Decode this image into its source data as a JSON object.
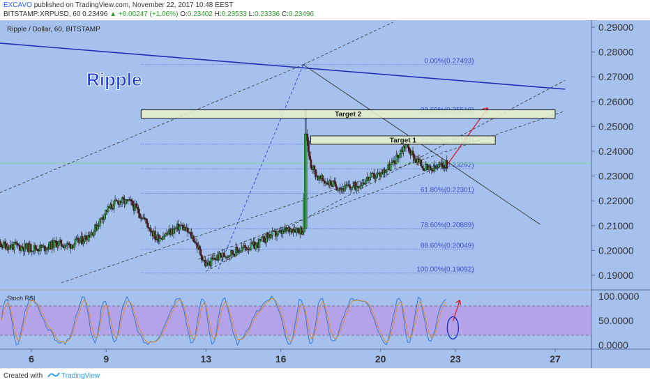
{
  "header": {
    "author": "EXCAVO",
    "published": " published on TradingView.com, November 22, 2017 10:48 EEST",
    "symbol_line": "BITSTAMP:XRPUSD, 60  0.23496",
    "change": "▲ +0.00247 (+1.06%)",
    "ohlc_prefix": "O:",
    "open": "0.23402",
    "h_prefix": "H:",
    "high": "0.23533",
    "l_prefix": "L:",
    "low": "0.23336",
    "c_prefix": "C:",
    "close": "0.23496"
  },
  "footer": {
    "created_with": "Created with",
    "brand": "TradingView"
  },
  "chart_data": {
    "type": "candlestick",
    "title": "Ripple / Dollar, 60, BITSTAMP",
    "watermark": "Ripple",
    "ylim": [
      0.187,
      0.292
    ],
    "y_ticks": [
      "0.29000",
      "0.28000",
      "0.27000",
      "0.26000",
      "0.25000",
      "0.24000",
      "0.23000",
      "0.22000",
      "0.21000",
      "0.20000",
      "0.19000"
    ],
    "x_ticks": [
      "6",
      "9",
      "13",
      "16",
      "20",
      "23",
      "27"
    ],
    "x_tick_days": [
      6,
      9,
      13,
      16,
      20,
      23,
      27
    ],
    "fibonacci": [
      {
        "label": "0.00%(0.27493)",
        "value": 0.27493
      },
      {
        "label": "23.60%(0.25510)",
        "value": 0.2551
      },
      {
        "label": "38.20%(0.24284)",
        "value": 0.24284
      },
      {
        "label": "50.00%(0.23292)",
        "value": 0.23292
      },
      {
        "label": "61.80%(0.22301)",
        "value": 0.22301
      },
      {
        "label": "78.60%(0.20889)",
        "value": 0.20889
      },
      {
        "label": "88.60%(0.20049)",
        "value": 0.20049
      },
      {
        "label": "100.00%(0.19092)",
        "value": 0.19092
      }
    ],
    "targets": [
      {
        "label": "Target 2",
        "value": 0.255
      },
      {
        "label": "Target 1",
        "value": 0.2445
      }
    ],
    "current_price": 0.2349,
    "price_path": [
      [
        4.0,
        0.203
      ],
      [
        5.0,
        0.202
      ],
      [
        6.0,
        0.201
      ],
      [
        6.5,
        0.201
      ],
      [
        7.0,
        0.203
      ],
      [
        7.5,
        0.202
      ],
      [
        8.0,
        0.204
      ],
      [
        8.5,
        0.208
      ],
      [
        9.0,
        0.216
      ],
      [
        9.5,
        0.22
      ],
      [
        10.0,
        0.219
      ],
      [
        10.5,
        0.213
      ],
      [
        11.0,
        0.205
      ],
      [
        11.5,
        0.207
      ],
      [
        12.0,
        0.21
      ],
      [
        12.5,
        0.205
      ],
      [
        13.0,
        0.194
      ],
      [
        13.4,
        0.197
      ],
      [
        14.0,
        0.199
      ],
      [
        14.5,
        0.201
      ],
      [
        15.0,
        0.202
      ],
      [
        15.5,
        0.206
      ],
      [
        16.0,
        0.207
      ],
      [
        16.5,
        0.209
      ],
      [
        16.9,
        0.208
      ],
      [
        17.0,
        0.255
      ],
      [
        17.1,
        0.24
      ],
      [
        17.2,
        0.235
      ],
      [
        17.5,
        0.229
      ],
      [
        18.0,
        0.227
      ],
      [
        18.5,
        0.225
      ],
      [
        19.0,
        0.226
      ],
      [
        19.5,
        0.229
      ],
      [
        20.0,
        0.231
      ],
      [
        20.5,
        0.235
      ],
      [
        21.0,
        0.243
      ],
      [
        21.3,
        0.238
      ],
      [
        21.7,
        0.234
      ],
      [
        22.0,
        0.232
      ],
      [
        22.5,
        0.2345
      ],
      [
        22.7,
        0.2349
      ]
    ],
    "projection": [
      [
        22.7,
        0.2349
      ],
      [
        24.3,
        0.2575
      ]
    ],
    "stoch_rsi": {
      "label": "Stoch RSI",
      "ylim": [
        0,
        100
      ],
      "y_ticks": [
        "100.0000",
        "50.0000",
        "0.0000"
      ],
      "band": [
        20,
        80
      ]
    }
  }
}
